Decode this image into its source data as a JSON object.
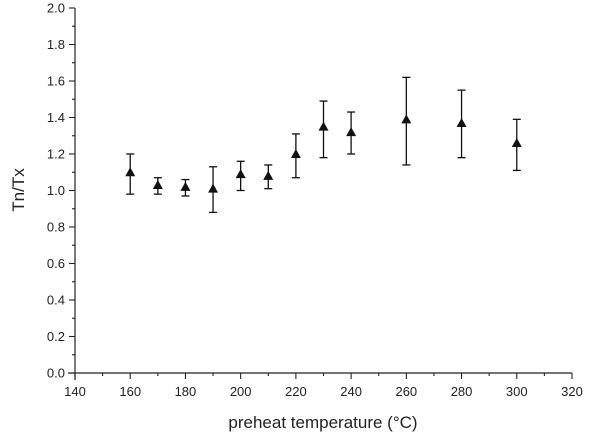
{
  "chart_data": {
    "type": "scatter",
    "title": "",
    "xlabel": "preheat temperature (°C)",
    "ylabel": "Tn/Tx",
    "xlim": [
      140,
      320
    ],
    "ylim": [
      0.0,
      2.0
    ],
    "x_ticks": [
      "140",
      "160",
      "180",
      "200",
      "220",
      "240",
      "260",
      "280",
      "300",
      "320"
    ],
    "y_ticks": [
      "0.0",
      "0.2",
      "0.4",
      "0.6",
      "0.8",
      "1.0",
      "1.2",
      "1.4",
      "1.6",
      "1.8",
      "2.0"
    ],
    "x_tick_values": [
      140,
      160,
      180,
      200,
      220,
      240,
      260,
      280,
      300,
      320
    ],
    "y_tick_values": [
      0.0,
      0.2,
      0.4,
      0.6,
      0.8,
      1.0,
      1.2,
      1.4,
      1.6,
      1.8,
      2.0
    ],
    "marker": "triangle",
    "grid": false,
    "points": [
      {
        "x": 160,
        "y": 1.1,
        "err_low": 0.98,
        "err_high": 1.2
      },
      {
        "x": 170,
        "y": 1.03,
        "err_low": 0.98,
        "err_high": 1.07
      },
      {
        "x": 180,
        "y": 1.02,
        "err_low": 0.97,
        "err_high": 1.06
      },
      {
        "x": 190,
        "y": 1.01,
        "err_low": 0.88,
        "err_high": 1.13
      },
      {
        "x": 200,
        "y": 1.09,
        "err_low": 1.0,
        "err_high": 1.16
      },
      {
        "x": 210,
        "y": 1.08,
        "err_low": 1.01,
        "err_high": 1.14
      },
      {
        "x": 220,
        "y": 1.2,
        "err_low": 1.07,
        "err_high": 1.31
      },
      {
        "x": 230,
        "y": 1.35,
        "err_low": 1.18,
        "err_high": 1.49
      },
      {
        "x": 240,
        "y": 1.32,
        "err_low": 1.2,
        "err_high": 1.43
      },
      {
        "x": 260,
        "y": 1.39,
        "err_low": 1.14,
        "err_high": 1.62
      },
      {
        "x": 280,
        "y": 1.37,
        "err_low": 1.18,
        "err_high": 1.55
      },
      {
        "x": 300,
        "y": 1.26,
        "err_low": 1.11,
        "err_high": 1.39
      }
    ]
  }
}
